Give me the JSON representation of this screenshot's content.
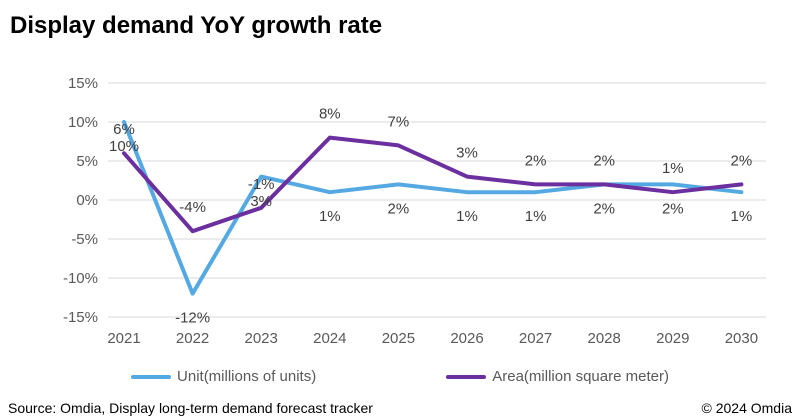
{
  "title": "Display demand YoY growth rate",
  "footer": {
    "source": "Source: Omdia, Display long-term demand forecast tracker",
    "copyright": "© 2024 Omdia"
  },
  "colors": {
    "unit": "#55A9E2",
    "area": "#6B2FA0",
    "grid": "#D9D9D9",
    "tick_text": "#595959",
    "label_text": "#404040"
  },
  "chart_data": {
    "type": "line",
    "title": "Display demand YoY growth rate",
    "categories": [
      "2021",
      "2022",
      "2023",
      "2024",
      "2025",
      "2026",
      "2027",
      "2028",
      "2029",
      "2030"
    ],
    "series": [
      {
        "name": "Unit(millions of units)",
        "color_key": "unit",
        "values": [
          10,
          -12,
          3,
          1,
          2,
          1,
          1,
          2,
          2,
          1
        ],
        "labels": [
          "10%",
          "-12%",
          "3%",
          "1%",
          "2%",
          "1%",
          "1%",
          "2%",
          "2%",
          "1%"
        ],
        "label_position": "below"
      },
      {
        "name": "Area(million square meter)",
        "color_key": "area",
        "values": [
          6,
          -4,
          -1,
          8,
          7,
          3,
          2,
          2,
          1,
          2
        ],
        "labels": [
          "6%",
          "-4%",
          "-1%",
          "8%",
          "7%",
          "3%",
          "2%",
          "2%",
          "1%",
          "2%"
        ],
        "label_position": "above"
      }
    ],
    "xlabel": "",
    "ylabel": "",
    "ylim": [
      -15,
      15
    ],
    "ytick_step": 5,
    "ytick_labels": [
      "15%",
      "10%",
      "5%",
      "0%",
      "-5%",
      "-10%",
      "-15%"
    ],
    "grid": true,
    "legend_position": "bottom"
  }
}
